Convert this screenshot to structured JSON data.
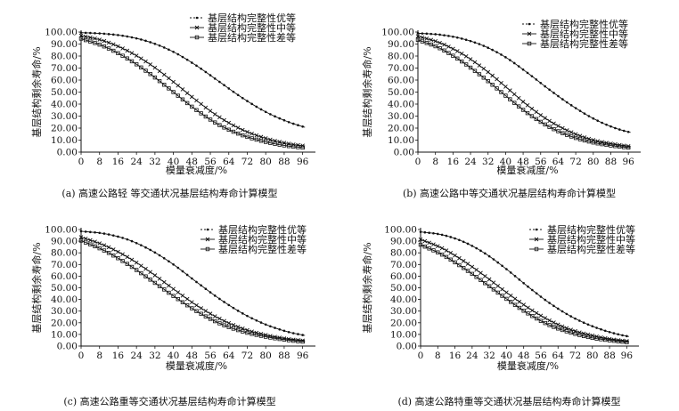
{
  "chart_data": [
    {
      "type": "line",
      "caption": "(a) 高速公路轻 等交通状况基层结构寿命计算模型",
      "xlabel": "模量衰减度/%",
      "ylabel": "基层结构剩余寿命/%",
      "xticks": [
        "0",
        "8",
        "16",
        "24",
        "32",
        "40",
        "48",
        "56",
        "64",
        "72",
        "80",
        "88",
        "96"
      ],
      "yticks": [
        "0.00",
        "10.00",
        "20.00",
        "30.00",
        "40.00",
        "50.00",
        "60.00",
        "70.00",
        "80.00",
        "90.00",
        "100.00"
      ],
      "xlim": [
        0,
        100
      ],
      "ylim": [
        0,
        100
      ],
      "legend": "top-right",
      "grid": false,
      "x": [
        0,
        10,
        20,
        30,
        40,
        50,
        60,
        70,
        80,
        90,
        100
      ],
      "series": [
        {
          "name": "基层结构完整性优等",
          "marker": "dot",
          "values": [
            99.5,
            98.6,
            96.3,
            91.5,
            83.5,
            72.0,
            58.5,
            45.0,
            33.5,
            25.0,
            19.0
          ]
        },
        {
          "name": "基层结构完整性中等",
          "marker": "x",
          "values": [
            97.0,
            92.5,
            84.5,
            73.0,
            58.5,
            43.0,
            29.0,
            18.5,
            11.5,
            7.0,
            4.5
          ]
        },
        {
          "name": "基层结构完整性差等",
          "marker": "square",
          "values": [
            94.5,
            88.0,
            78.0,
            65.0,
            50.0,
            35.0,
            22.5,
            14.0,
            8.5,
            5.0,
            3.0
          ]
        }
      ]
    },
    {
      "type": "line",
      "caption": "(b) 高速公路中等交通状况基层结构寿命计算模型",
      "xlabel": "模量衰减度/%",
      "ylabel": "基层结构剩余寿命/%",
      "xticks": [
        "0",
        "8",
        "16",
        "24",
        "32",
        "40",
        "48",
        "56",
        "64",
        "72",
        "80",
        "88",
        "96"
      ],
      "yticks": [
        "0.00",
        "10.00",
        "20.00",
        "30.00",
        "40.00",
        "50.00",
        "60.00",
        "70.00",
        "80.00",
        "90.00",
        "100.00"
      ],
      "xlim": [
        0,
        100
      ],
      "ylim": [
        0,
        100
      ],
      "legend": "top-right",
      "grid": false,
      "x": [
        0,
        10,
        20,
        30,
        40,
        50,
        60,
        70,
        80,
        90,
        100
      ],
      "series": [
        {
          "name": "基层结构完整性优等",
          "marker": "dot",
          "values": [
            99.0,
            97.8,
            94.5,
            88.5,
            79.0,
            66.0,
            52.0,
            39.0,
            28.0,
            20.0,
            15.0
          ]
        },
        {
          "name": "基层结构完整性中等",
          "marker": "x",
          "values": [
            96.5,
            91.0,
            82.0,
            69.5,
            54.5,
            39.0,
            26.0,
            16.5,
            10.0,
            6.5,
            4.0
          ]
        },
        {
          "name": "基层结构完整性差等",
          "marker": "square",
          "values": [
            93.5,
            86.5,
            75.5,
            62.0,
            47.0,
            32.5,
            21.0,
            13.0,
            8.0,
            5.0,
            3.0
          ]
        }
      ]
    },
    {
      "type": "line",
      "caption": "(c) 高速公路重等交通状况基层结构寿命计算模型",
      "xlabel": "模量衰减度/%",
      "ylabel": "基层结构剩余寿命/%",
      "xticks": [
        "0",
        "8",
        "16",
        "24",
        "32",
        "40",
        "48",
        "56",
        "64",
        "72",
        "80",
        "88",
        "96"
      ],
      "yticks": [
        "0.00",
        "10.00",
        "20.00",
        "30.00",
        "40.00",
        "50.00",
        "60.00",
        "70.00",
        "80.00",
        "90.00",
        "100.00"
      ],
      "xlim": [
        0,
        100
      ],
      "ylim": [
        0,
        100
      ],
      "legend": "top-right",
      "grid": false,
      "x": [
        0,
        10,
        20,
        30,
        40,
        50,
        60,
        70,
        80,
        90,
        100
      ],
      "series": [
        {
          "name": "基层结构完整性优等",
          "marker": "dot",
          "values": [
            98.5,
            96.5,
            91.5,
            82.5,
            70.0,
            55.0,
            40.5,
            28.0,
            18.5,
            12.0,
            8.0
          ]
        },
        {
          "name": "基层结构完整性中等",
          "marker": "x",
          "values": [
            93.5,
            86.5,
            76.5,
            63.5,
            49.0,
            35.0,
            23.5,
            15.0,
            9.5,
            6.0,
            4.0
          ]
        },
        {
          "name": "基层结构完整性差等",
          "marker": "square",
          "values": [
            90.5,
            82.0,
            70.5,
            57.0,
            43.0,
            30.0,
            19.5,
            12.5,
            8.0,
            5.0,
            3.0
          ]
        }
      ]
    },
    {
      "type": "line",
      "caption": "(d) 高速公路特重等交通状况基层结构寿命计算模型",
      "xlabel": "模量衰减度/%",
      "ylabel": "基层结构剩余寿命/%",
      "xticks": [
        "0",
        "8",
        "16",
        "24",
        "32",
        "40",
        "48",
        "56",
        "64",
        "72",
        "80",
        "88",
        "96"
      ],
      "yticks": [
        "0.00",
        "10.00",
        "20.00",
        "30.00",
        "40.00",
        "50.00",
        "60.00",
        "70.00",
        "80.00",
        "90.00",
        "100.00"
      ],
      "xlim": [
        0,
        100
      ],
      "ylim": [
        0,
        100
      ],
      "legend": "top-right",
      "grid": false,
      "x": [
        0,
        10,
        20,
        30,
        40,
        50,
        60,
        70,
        80,
        90,
        100
      ],
      "series": [
        {
          "name": "基层结构完整性优等",
          "marker": "dot",
          "values": [
            98.0,
            95.5,
            89.5,
            79.5,
            66.0,
            51.0,
            37.0,
            25.5,
            17.0,
            11.0,
            7.0
          ]
        },
        {
          "name": "基层结构完整性中等",
          "marker": "x",
          "values": [
            91.5,
            84.0,
            73.0,
            60.0,
            46.0,
            33.0,
            22.0,
            14.0,
            9.0,
            5.5,
            3.5
          ]
        },
        {
          "name": "基层结构完整性差等",
          "marker": "square",
          "values": [
            87.0,
            78.5,
            67.0,
            54.0,
            40.5,
            28.0,
            18.0,
            11.5,
            7.0,
            4.5,
            2.5
          ]
        }
      ]
    }
  ]
}
